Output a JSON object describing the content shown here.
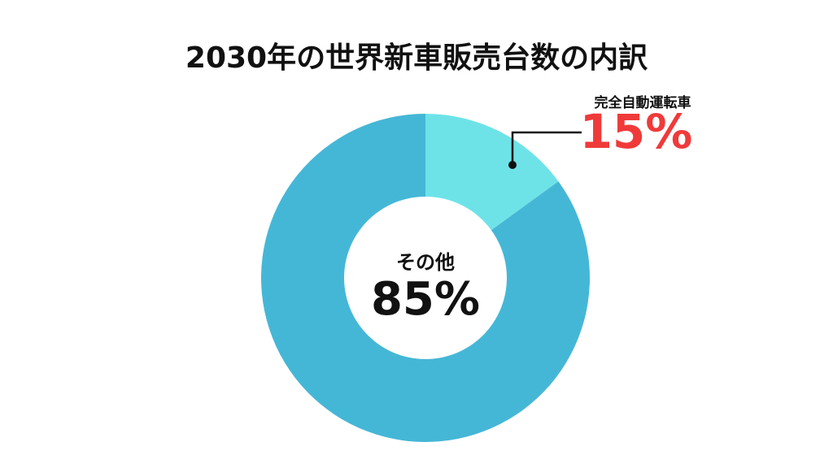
{
  "chart_data": {
    "type": "donut",
    "title": "2030年の世界新車販売台数の内訳",
    "categories": [
      "完全自動運転車",
      "その他"
    ],
    "values": [
      15,
      85
    ],
    "value_labels": [
      "15%",
      "85%"
    ],
    "colors": [
      "#6de3e8",
      "#45b7d6"
    ],
    "value_label_colors": [
      "#f03a3a",
      "#111111"
    ]
  }
}
